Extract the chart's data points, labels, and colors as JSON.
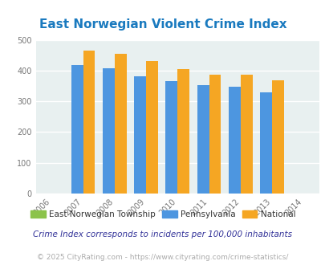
{
  "title": "East Norwegian Violent Crime Index",
  "years": [
    2006,
    2007,
    2008,
    2009,
    2010,
    2011,
    2012,
    2013,
    2014
  ],
  "bar_years": [
    2007,
    2008,
    2009,
    2010,
    2011,
    2012,
    2013
  ],
  "pennsylvania": [
    417,
    408,
    380,
    366,
    353,
    348,
    328
  ],
  "national": [
    466,
    455,
    431,
    404,
    387,
    387,
    367
  ],
  "color_pa": "#4d96e0",
  "color_national": "#f5a623",
  "color_en": "#8bc34a",
  "color_title": "#1a7abf",
  "bg_plot": "#e8f0f0",
  "bg_fig": "#ffffff",
  "ylim": [
    0,
    500
  ],
  "yticks": [
    0,
    100,
    200,
    300,
    400,
    500
  ],
  "grid_color": "#ffffff",
  "footnote1": "Crime Index corresponds to incidents per 100,000 inhabitants",
  "footnote2": "© 2025 CityRating.com - https://www.cityrating.com/crime-statistics/",
  "legend_labels": [
    "East Norwegian Township",
    "Pennsylvania",
    "National"
  ],
  "bar_width": 0.38
}
